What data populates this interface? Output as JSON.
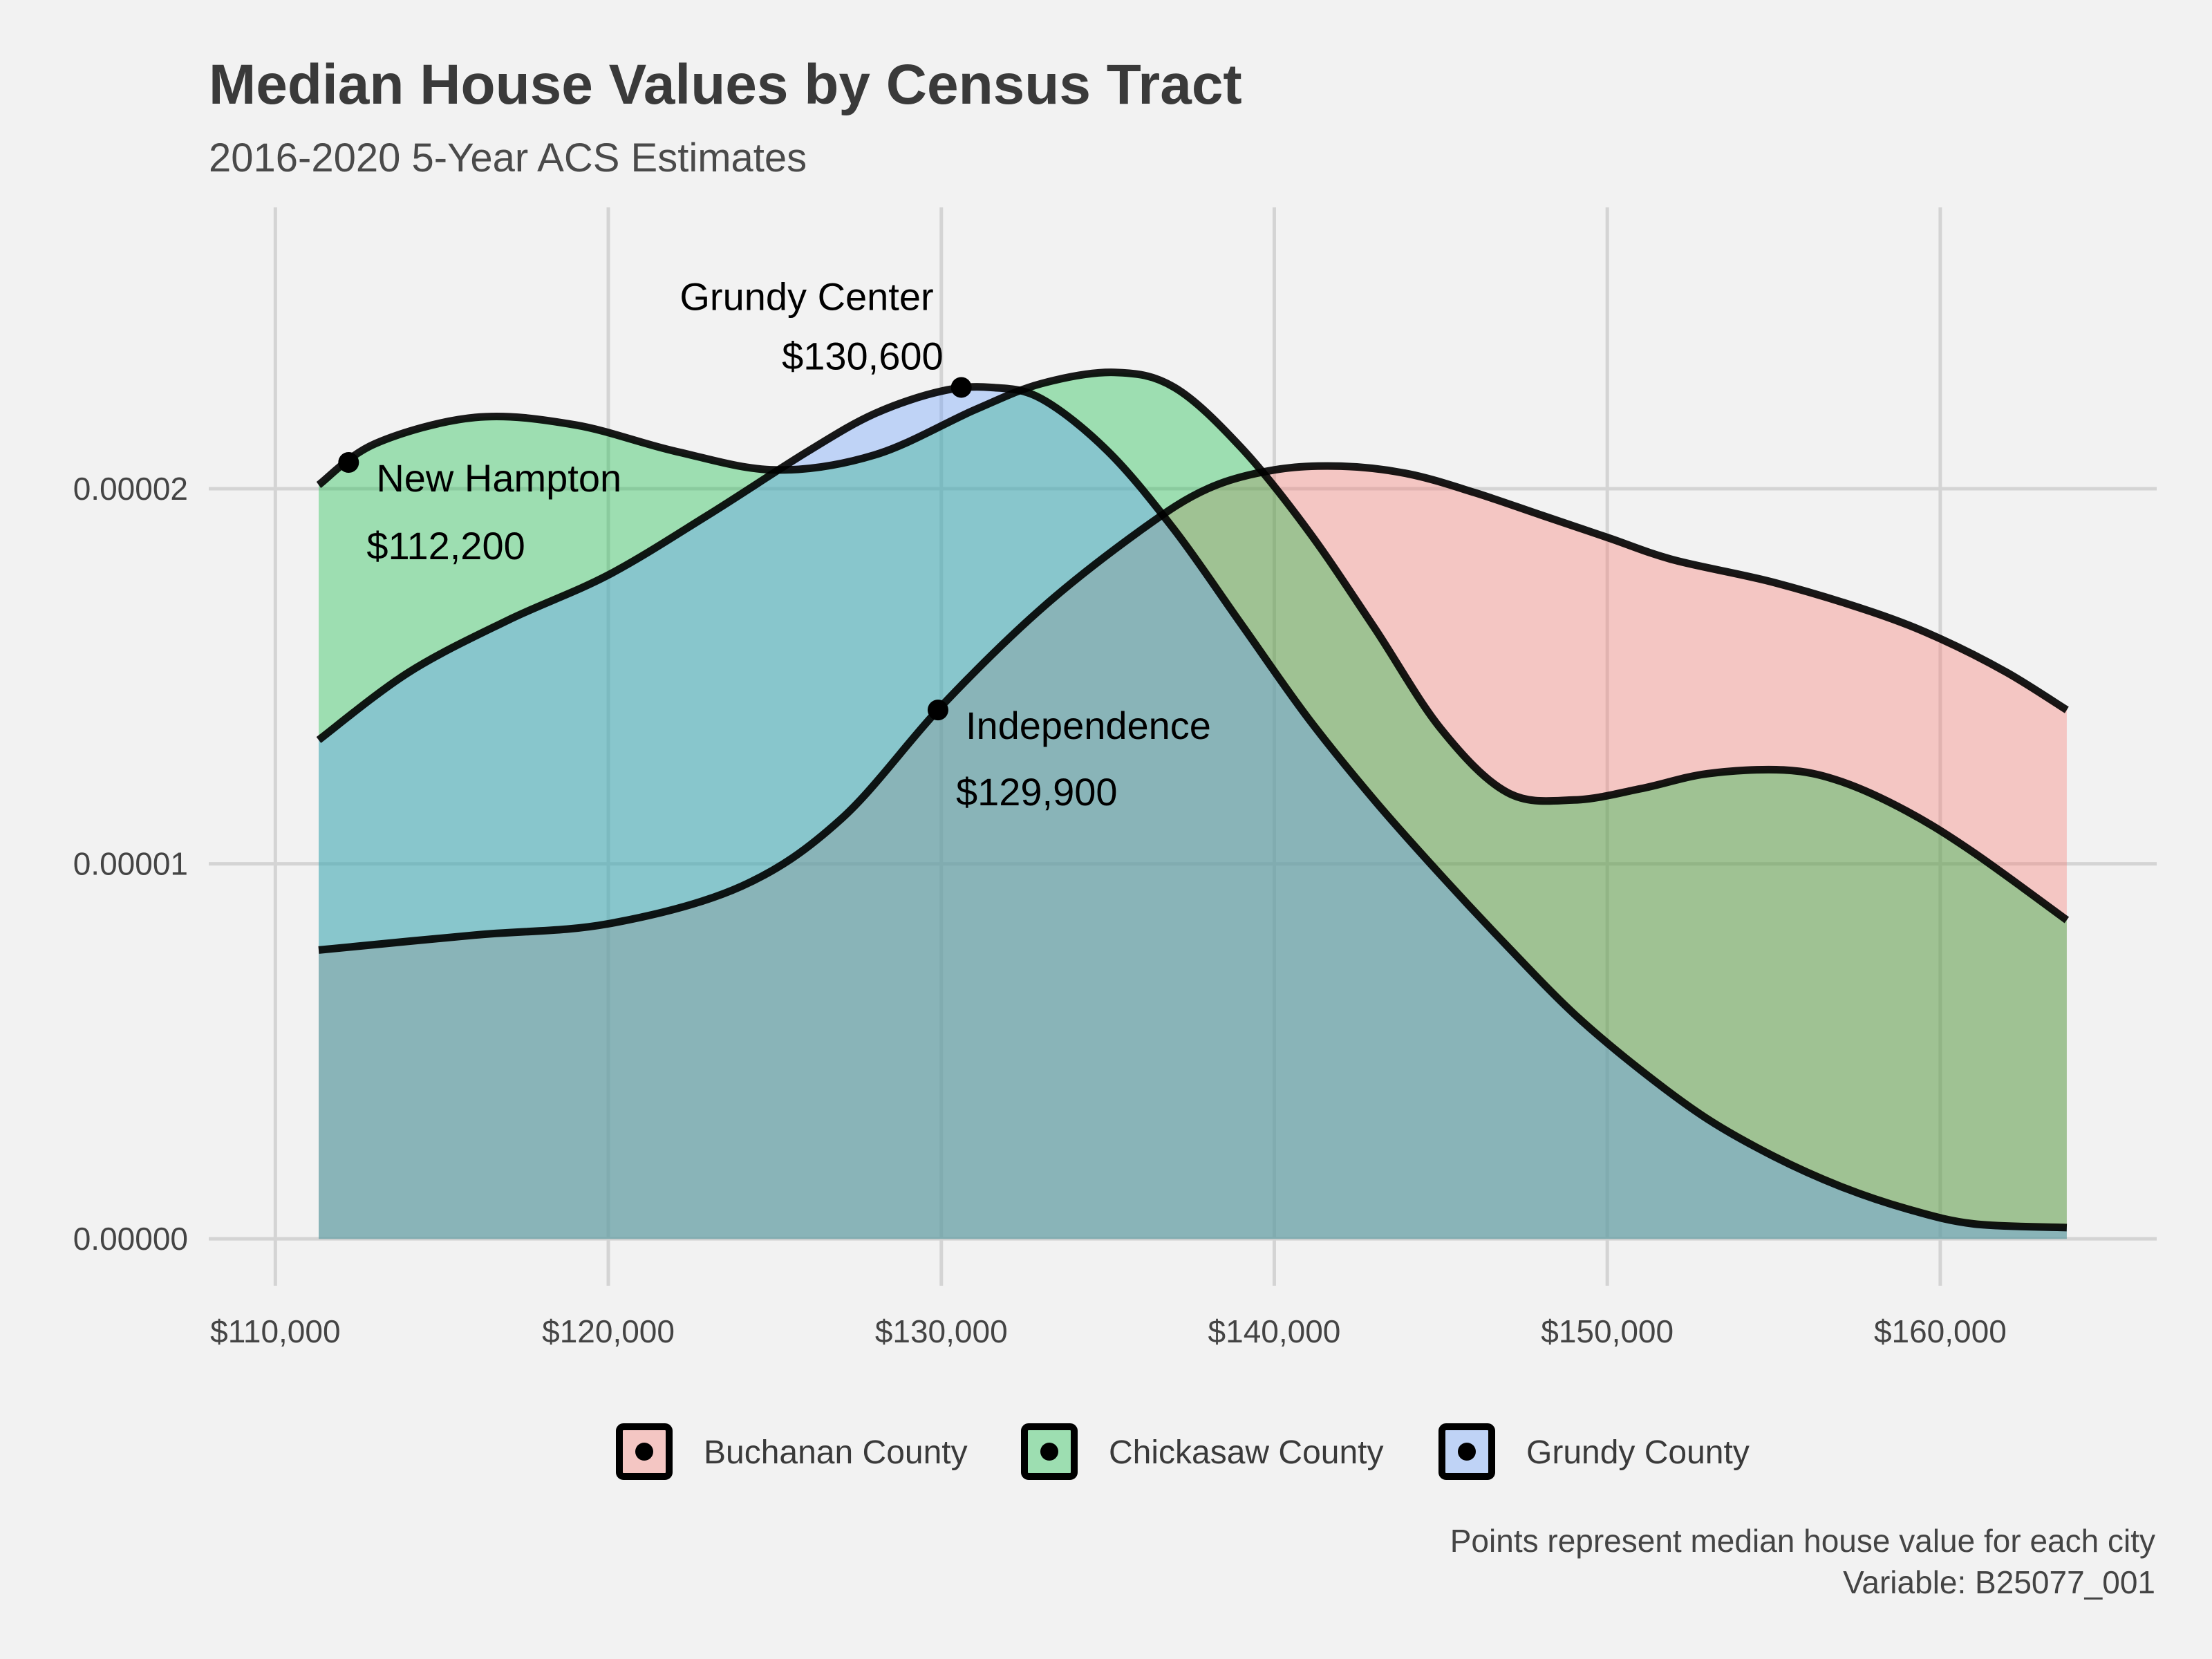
{
  "chart_data": {
    "type": "area",
    "title": "Median House Values by Census Tract",
    "subtitle": "2016-2020 5-Year ACS Estimates",
    "xlabel": "",
    "ylabel": "",
    "xlim": [
      108000,
      166500
    ],
    "ylim": [
      -1.25e-06,
      2.75e-05
    ],
    "x_ticks": [
      110000,
      120000,
      130000,
      140000,
      150000,
      160000
    ],
    "x_tick_labels": [
      "$110,000",
      "$120,000",
      "$130,000",
      "$140,000",
      "$150,000",
      "$160,000"
    ],
    "y_ticks": [
      0,
      1e-05,
      2e-05
    ],
    "y_tick_labels": [
      "0.00000",
      "0.00001",
      "0.00002"
    ],
    "grid": true,
    "legend_position": "bottom",
    "series": [
      {
        "name": "Buchanan County",
        "color": "#f8766d",
        "x": [
          111300,
          116000,
          120000,
          124000,
          127000,
          130000,
          133000,
          136000,
          138000,
          140000,
          142000,
          144000,
          146000,
          148000,
          150000,
          152000,
          155000,
          158000,
          160000,
          162000,
          163800
        ],
        "y": [
          7.7e-06,
          8.1e-06,
          8.4e-06,
          9.4e-06,
          1.12e-05,
          1.42e-05,
          1.68e-05,
          1.89e-05,
          2e-05,
          2.05e-05,
          2.06e-05,
          2.04e-05,
          1.99e-05,
          1.93e-05,
          1.87e-05,
          1.81e-05,
          1.75e-05,
          1.67e-05,
          1.6e-05,
          1.51e-05,
          1.41e-05
        ]
      },
      {
        "name": "Chickasaw County",
        "color": "#00ba38",
        "x": [
          111300,
          113000,
          116000,
          119000,
          122000,
          125000,
          128000,
          131000,
          133000,
          135200,
          137000,
          139000,
          141000,
          143000,
          145000,
          147000,
          149000,
          151000,
          153000,
          155300,
          157000,
          159000,
          161000,
          163800
        ],
        "y": [
          2.01e-05,
          2.12e-05,
          2.19e-05,
          2.17e-05,
          2.1e-05,
          2.05e-05,
          2.09e-05,
          2.21e-05,
          2.28e-05,
          2.31e-05,
          2.27e-05,
          2.11e-05,
          1.89e-05,
          1.63e-05,
          1.36e-05,
          1.19e-05,
          1.17e-05,
          1.2e-05,
          1.24e-05,
          1.25e-05,
          1.22e-05,
          1.14e-05,
          1.03e-05,
          8.5e-06
        ]
      },
      {
        "name": "Grundy County",
        "color": "#619cff",
        "x": [
          111300,
          114000,
          117000,
          120000,
          123000,
          126000,
          128000,
          130000,
          131500,
          133000,
          135000,
          137000,
          139000,
          141000,
          143000,
          145000,
          147000,
          149000,
          151000,
          153000,
          155000,
          157000,
          159000,
          161000,
          163800
        ],
        "y": [
          1.33e-05,
          1.51e-05,
          1.65e-05,
          1.77e-05,
          1.93e-05,
          2.1e-05,
          2.2e-05,
          2.26e-05,
          2.27e-05,
          2.24e-05,
          2.1e-05,
          1.89e-05,
          1.64e-05,
          1.39e-05,
          1.17e-05,
          9.7e-06,
          7.8e-06,
          6e-06,
          4.5e-06,
          3.2e-06,
          2.2e-06,
          1.4e-06,
          8e-07,
          4e-07,
          3e-07
        ]
      }
    ],
    "points": [
      {
        "city": "New Hampton",
        "value_label": "$112,200",
        "x": 112200,
        "y": 2.07e-05,
        "series": "Chickasaw County"
      },
      {
        "city": "Grundy Center",
        "value_label": "$130,600",
        "x": 130600,
        "y": 2.27e-05,
        "series": "Grundy County"
      },
      {
        "city": "Independence",
        "value_label": "$129,900",
        "x": 129900,
        "y": 1.41e-05,
        "series": "Buchanan County"
      }
    ],
    "caption": [
      "Points represent median house value for each city",
      "Variable: B25077_001"
    ]
  }
}
